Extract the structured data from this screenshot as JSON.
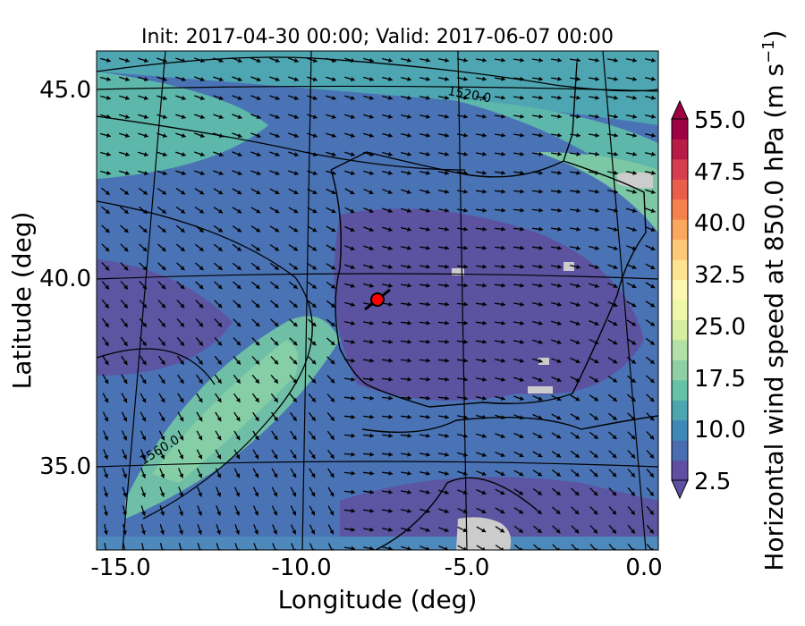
{
  "title": "Init: 2017-04-30 00:00; Valid: 2017-06-07 00:00",
  "x_axis": {
    "label": "Longitude (deg)",
    "ticks": [
      "-15.0",
      "-10.0",
      "-5.0",
      "0.0"
    ]
  },
  "y_axis": {
    "label": "Latitude (deg)",
    "ticks": [
      "45.0",
      "40.0",
      "35.0"
    ]
  },
  "colorbar": {
    "label_main": "Horizontal wind speed at 850.0 hPa (m s",
    "label_exp": "−1",
    "label_close": ")",
    "ticks": [
      "55.0",
      "47.5",
      "40.0",
      "32.5",
      "25.0",
      "17.5",
      "10.0",
      "2.5"
    ],
    "colors": [
      "#5e4fa2",
      "#4a6cb0",
      "#3f88b8",
      "#4da5b0",
      "#66c2a5",
      "#8ed0a4",
      "#b3e0a6",
      "#d5eea1",
      "#eef8a8",
      "#fef7b3",
      "#fee491",
      "#fdc877",
      "#fba75e",
      "#f5824d",
      "#e85e4b",
      "#d53e4f",
      "#b71c47",
      "#9e0142"
    ]
  },
  "contour_labels": [
    "1520.0",
    "1560.0"
  ],
  "marker": {
    "name": "site-marker",
    "color": "#ff0000"
  },
  "chart_data": {
    "type": "map",
    "field": "Horizontal wind speed at 850.0 hPa",
    "units": "m s-1",
    "xlim": [
      -16,
      0.2
    ],
    "ylim": [
      32.8,
      46.2
    ],
    "colorbar_range": [
      2.5,
      55.0
    ],
    "colorbar_ticks": [
      2.5,
      10.0,
      17.5,
      25.0,
      32.5,
      40.0,
      47.5,
      55.0
    ],
    "geopotential_contours": [
      1520.0,
      1560.0
    ],
    "marker_location": {
      "lon": -7.6,
      "lat": 39.5
    }
  }
}
